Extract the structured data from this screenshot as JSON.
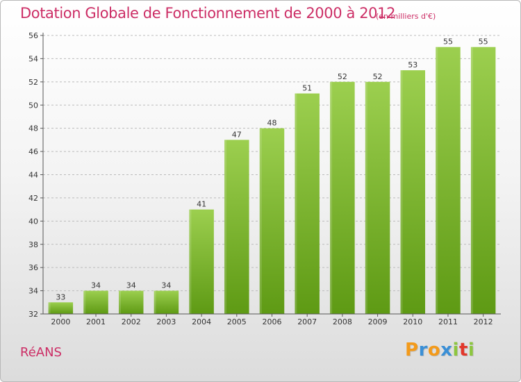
{
  "header": {
    "title": "Dotation Globale de Fonctionnement de 2000 à 2012",
    "subtitle": "(en milliers d'€)"
  },
  "footer": {
    "commune": "RéANS",
    "logo_letters": [
      "P",
      "r",
      "o",
      "x",
      "i",
      "t",
      "i"
    ],
    "logo_colors": [
      "#f39a1a",
      "#3a8fd6",
      "#f39a1a",
      "#3a8fd6",
      "#8dc63f",
      "#e2372b",
      "#8dc63f"
    ]
  },
  "colors": {
    "title": "#cc2d65",
    "bar_top": "#9ccf4f",
    "bar_bottom": "#5e9a14",
    "axis": "#555555",
    "grid": "#bbbbbb"
  },
  "chart_data": {
    "type": "bar",
    "title": "Dotation Globale de Fonctionnement de 2000 à 2012",
    "subtitle": "(en milliers d'€)",
    "xlabel": "",
    "ylabel": "",
    "categories": [
      "2000",
      "2001",
      "2002",
      "2003",
      "2004",
      "2005",
      "2006",
      "2007",
      "2008",
      "2009",
      "2010",
      "2011",
      "2012"
    ],
    "values": [
      33,
      34,
      34,
      34,
      41,
      47,
      48,
      51,
      52,
      52,
      53,
      55,
      55
    ],
    "ylim": [
      32,
      56
    ],
    "yticks": [
      32,
      34,
      36,
      38,
      40,
      42,
      44,
      46,
      48,
      50,
      52,
      54,
      56
    ],
    "grid": "horizontal dashed",
    "legend": "none"
  }
}
